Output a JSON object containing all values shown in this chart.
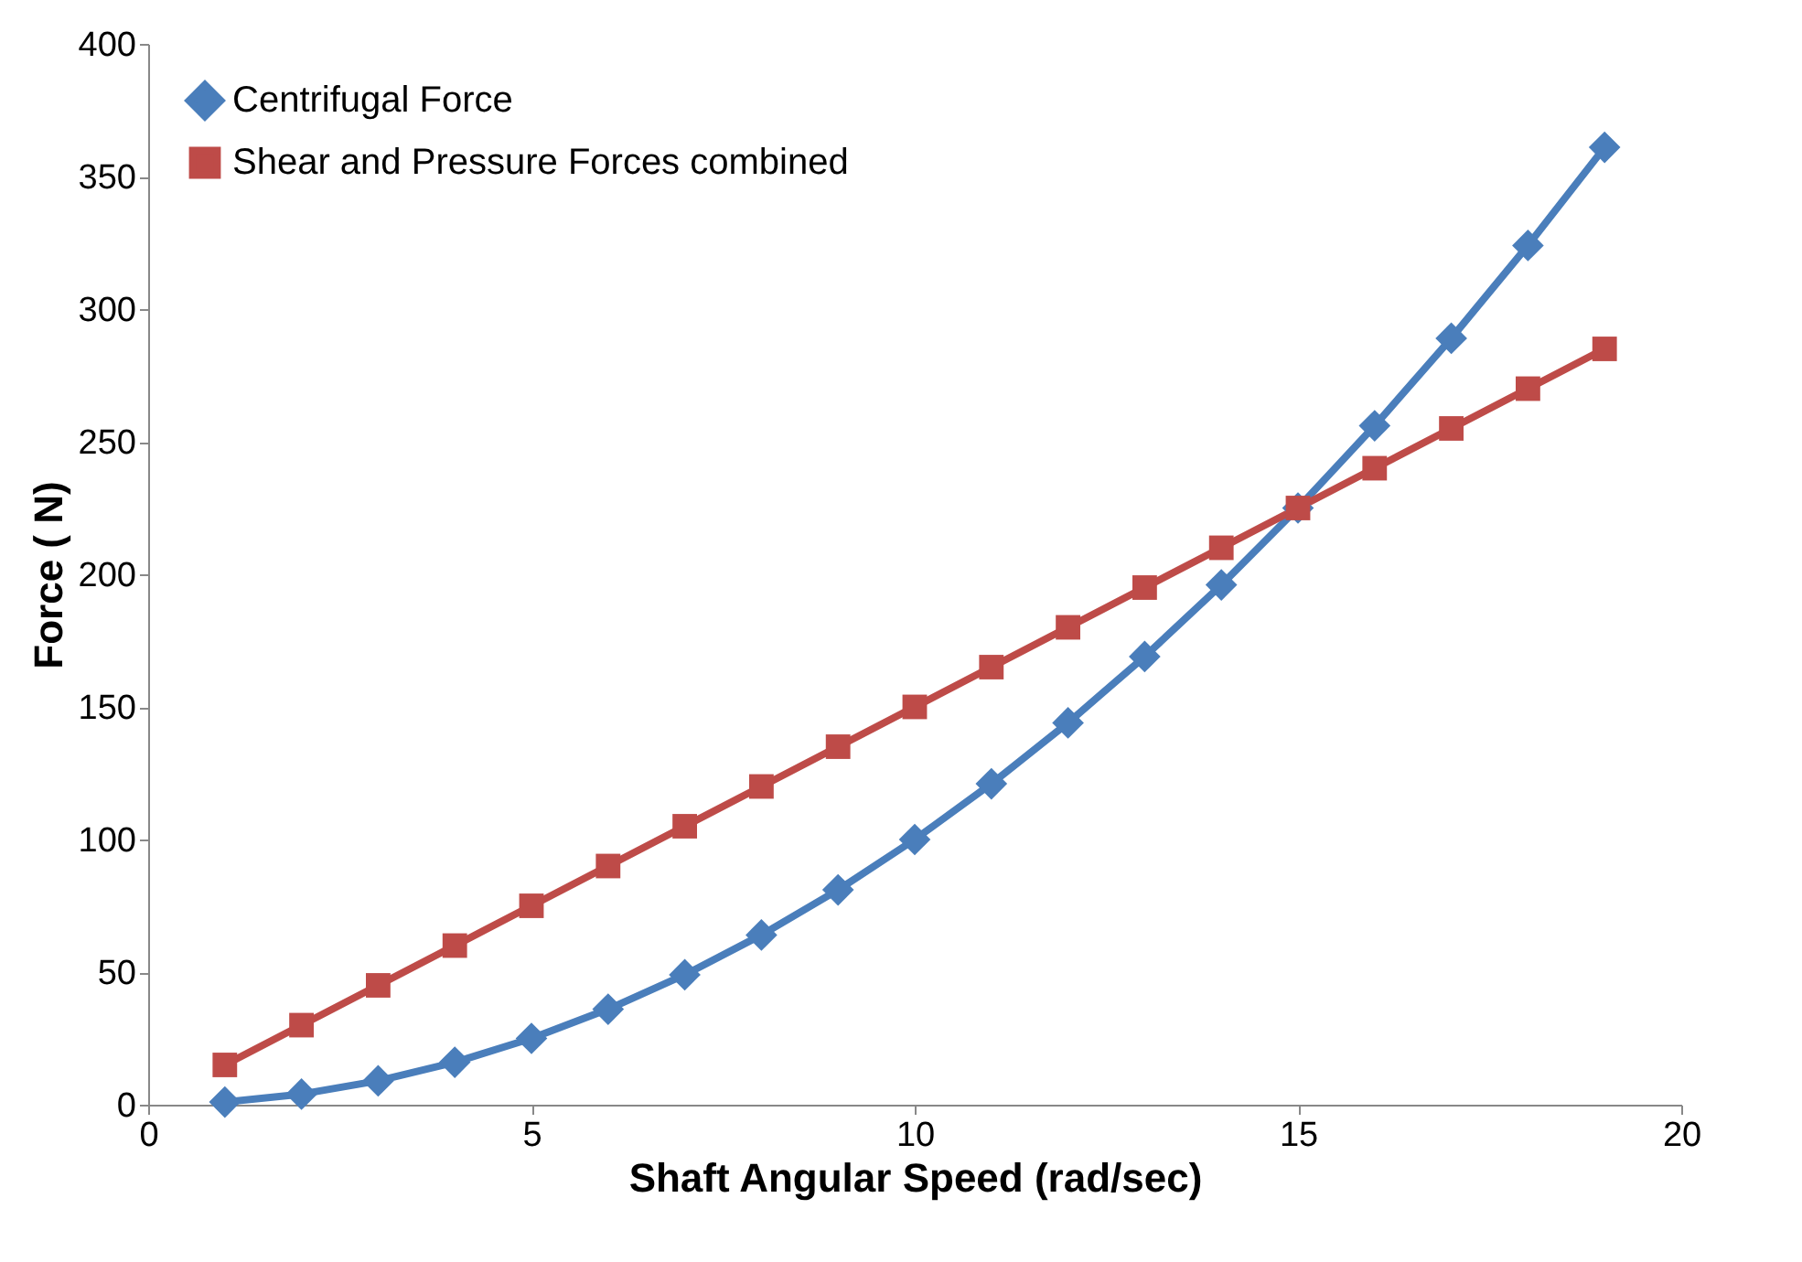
{
  "chart_data": {
    "type": "line",
    "xlabel": "Shaft Angular Speed (rad/sec)",
    "ylabel": "Force  ( N)",
    "x": [
      1,
      2,
      3,
      4,
      5,
      6,
      7,
      8,
      9,
      10,
      11,
      12,
      13,
      14,
      15,
      16,
      17,
      18,
      19
    ],
    "series": [
      {
        "name": "Centrifugal Force",
        "color": "#4a7ebb",
        "marker": "diamond",
        "values": [
          1,
          4,
          9,
          16,
          25,
          36,
          49,
          64,
          81,
          100,
          121,
          144,
          169,
          196,
          225,
          256,
          289,
          324,
          361
        ]
      },
      {
        "name": "Shear and Pressure Forces combined",
        "color": "#be4b48",
        "marker": "square",
        "values": [
          15,
          30,
          45,
          60,
          75,
          90,
          105,
          120,
          135,
          150,
          165,
          180,
          195,
          210,
          225,
          240,
          255,
          270,
          285
        ]
      }
    ],
    "xlim": [
      0,
      20
    ],
    "xticks": [
      0,
      5,
      10,
      15,
      20
    ],
    "ylim": [
      0,
      400
    ],
    "yticks": [
      0,
      50,
      100,
      150,
      200,
      250,
      300,
      350,
      400
    ],
    "grid": false,
    "legend": "top left",
    "line_style": "solid"
  }
}
